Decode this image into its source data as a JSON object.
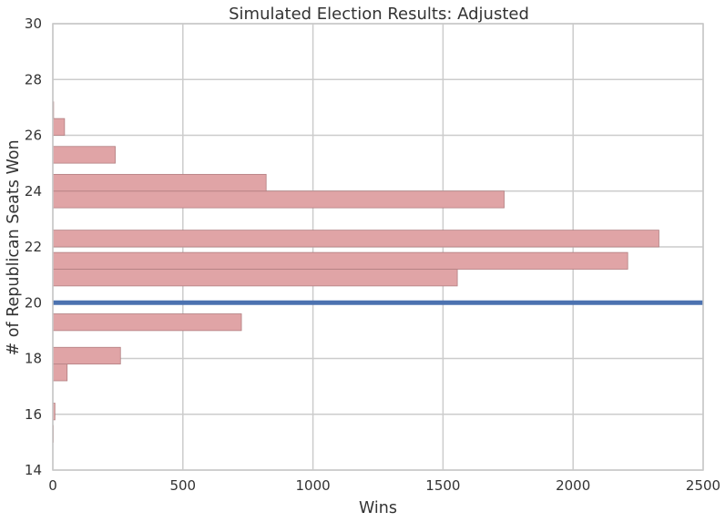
{
  "chart_data": {
    "type": "bar",
    "orientation": "horizontal",
    "title": "Simulated Election Results: Adjusted",
    "xlabel": "Wins",
    "ylabel": "# of Republican Seats Won",
    "xlim": [
      0,
      2500
    ],
    "ylim": [
      14,
      30
    ],
    "xticks": [
      0,
      500,
      1000,
      1500,
      2000,
      2500
    ],
    "yticks": [
      14,
      16,
      18,
      20,
      22,
      24,
      26,
      28,
      30
    ],
    "grid": true,
    "bar_color": "#e0a4a6",
    "bar_edge_color": "#b27f81",
    "bins": [
      {
        "y_start": 15.0,
        "y_end": 15.6,
        "value": 2
      },
      {
        "y_start": 15.8,
        "y_end": 16.4,
        "value": 8
      },
      {
        "y_start": 17.2,
        "y_end": 17.8,
        "value": 55
      },
      {
        "y_start": 17.8,
        "y_end": 18.4,
        "value": 260
      },
      {
        "y_start": 19.0,
        "y_end": 19.6,
        "value": 725
      },
      {
        "y_start": 20.6,
        "y_end": 21.2,
        "value": 1555
      },
      {
        "y_start": 21.2,
        "y_end": 21.8,
        "value": 2210
      },
      {
        "y_start": 22.0,
        "y_end": 22.6,
        "value": 2330
      },
      {
        "y_start": 23.4,
        "y_end": 24.0,
        "value": 1735
      },
      {
        "y_start": 24.0,
        "y_end": 24.6,
        "value": 820
      },
      {
        "y_start": 25.0,
        "y_end": 25.6,
        "value": 240
      },
      {
        "y_start": 26.0,
        "y_end": 26.6,
        "value": 45
      },
      {
        "y_start": 26.6,
        "y_end": 27.2,
        "value": 3
      }
    ],
    "reference_line": {
      "y": 20,
      "color": "#4c72b0"
    }
  }
}
